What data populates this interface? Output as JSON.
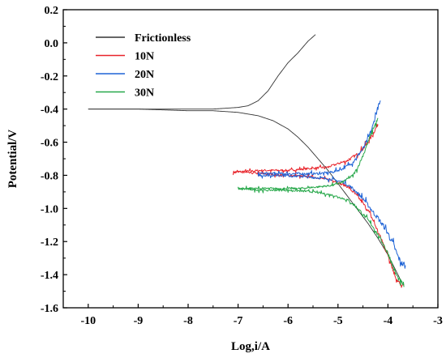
{
  "chart_data": {
    "type": "line",
    "xlabel": "Log,i/A",
    "ylabel": "Potential/V",
    "xlim": [
      -10.5,
      -3
    ],
    "ylim": [
      -1.6,
      0.2
    ],
    "xticks": [
      "-10",
      "-9",
      "-8",
      "-7",
      "-6",
      "-5",
      "-4",
      "-3"
    ],
    "xtick_values": [
      -10,
      -9,
      -8,
      -7,
      -6,
      -5,
      -4,
      -3
    ],
    "yticks": [
      "0.2",
      "0.0",
      "-0.2",
      "-0.4",
      "-0.6",
      "-0.8",
      "-1.0",
      "-1.2",
      "-1.4",
      "-1.6"
    ],
    "ytick_values": [
      0.2,
      0.0,
      -0.2,
      -0.4,
      -0.6,
      -0.8,
      -1.0,
      -1.2,
      -1.4,
      -1.6
    ],
    "grid": false,
    "legend_position": "top-left",
    "series": [
      {
        "name": "Frictionless",
        "color": "#333333",
        "noise": 0,
        "anodic": {
          "x": [
            -10.0,
            -9.0,
            -8.5,
            -8.0,
            -7.5,
            -7.0,
            -6.8,
            -6.6,
            -6.4,
            -6.2,
            -6.0,
            -5.8,
            -5.6,
            -5.45
          ],
          "y": [
            -0.4,
            -0.4,
            -0.4,
            -0.4,
            -0.4,
            -0.39,
            -0.38,
            -0.35,
            -0.29,
            -0.2,
            -0.12,
            -0.06,
            0.01,
            0.05
          ]
        },
        "cathodic": {
          "x": [
            -10.0,
            -9.0,
            -8.0,
            -7.5,
            -7.0,
            -6.6,
            -6.3,
            -6.0,
            -5.8,
            -5.6,
            -5.4,
            -5.2,
            -5.0,
            -4.8,
            -4.6,
            -4.4,
            -4.2,
            -4.0,
            -3.9,
            -3.8,
            -3.7
          ],
          "y": [
            -0.4,
            -0.4,
            -0.41,
            -0.41,
            -0.42,
            -0.44,
            -0.47,
            -0.52,
            -0.57,
            -0.63,
            -0.7,
            -0.77,
            -0.85,
            -0.93,
            -1.01,
            -1.09,
            -1.18,
            -1.28,
            -1.34,
            -1.4,
            -1.46
          ]
        }
      },
      {
        "name": "10N",
        "color": "#e8242b",
        "noise": 0.012,
        "anodic": {
          "x": [
            -7.1,
            -6.5,
            -6.0,
            -5.6,
            -5.2,
            -5.0,
            -4.8,
            -4.6,
            -4.5,
            -4.4,
            -4.3,
            -4.25,
            -4.2
          ],
          "y": [
            -0.78,
            -0.77,
            -0.77,
            -0.76,
            -0.75,
            -0.73,
            -0.71,
            -0.67,
            -0.64,
            -0.6,
            -0.55,
            -0.52,
            -0.49
          ]
        },
        "cathodic": {
          "x": [
            -7.1,
            -6.5,
            -6.0,
            -5.5,
            -5.1,
            -4.8,
            -4.6,
            -4.4,
            -4.3,
            -4.2,
            -4.1,
            -4.0,
            -3.95,
            -3.9,
            -3.85,
            -3.8,
            -3.75,
            -3.72,
            -3.68
          ],
          "y": [
            -0.78,
            -0.79,
            -0.8,
            -0.81,
            -0.83,
            -0.87,
            -0.93,
            -1.01,
            -1.07,
            -1.14,
            -1.21,
            -1.28,
            -1.32,
            -1.37,
            -1.41,
            -1.44,
            -1.46,
            -1.47,
            -1.47
          ]
        }
      },
      {
        "name": "20N",
        "color": "#1e63d6",
        "noise": 0.014,
        "anodic": {
          "x": [
            -6.6,
            -6.2,
            -5.8,
            -5.4,
            -5.1,
            -4.9,
            -4.7,
            -4.6,
            -4.5,
            -4.4,
            -4.3,
            -4.25,
            -4.2,
            -4.15
          ],
          "y": [
            -0.79,
            -0.79,
            -0.79,
            -0.79,
            -0.78,
            -0.76,
            -0.72,
            -0.68,
            -0.64,
            -0.58,
            -0.5,
            -0.44,
            -0.39,
            -0.36
          ]
        },
        "cathodic": {
          "x": [
            -6.6,
            -6.1,
            -5.6,
            -5.2,
            -4.9,
            -4.7,
            -4.5,
            -4.3,
            -4.2,
            -4.1,
            -4.0,
            -3.9,
            -3.85,
            -3.8,
            -3.75,
            -3.7,
            -3.65
          ],
          "y": [
            -0.8,
            -0.8,
            -0.81,
            -0.82,
            -0.84,
            -0.88,
            -0.94,
            -1.02,
            -1.06,
            -1.1,
            -1.15,
            -1.21,
            -1.25,
            -1.29,
            -1.32,
            -1.34,
            -1.35
          ]
        }
      },
      {
        "name": "30N",
        "color": "#27a84a",
        "noise": 0.011,
        "anodic": {
          "x": [
            -7.0,
            -6.6,
            -6.2,
            -5.8,
            -5.4,
            -5.1,
            -4.9,
            -4.7,
            -4.6,
            -4.5,
            -4.4,
            -4.3,
            -4.25,
            -4.2
          ],
          "y": [
            -0.88,
            -0.88,
            -0.88,
            -0.88,
            -0.87,
            -0.86,
            -0.84,
            -0.8,
            -0.75,
            -0.68,
            -0.6,
            -0.52,
            -0.49,
            -0.46
          ]
        },
        "cathodic": {
          "x": [
            -7.0,
            -6.5,
            -6.0,
            -5.5,
            -5.1,
            -4.8,
            -4.6,
            -4.4,
            -4.3,
            -4.2,
            -4.1,
            -4.0,
            -3.95,
            -3.9,
            -3.85,
            -3.8,
            -3.75,
            -3.72,
            -3.68
          ],
          "y": [
            -0.88,
            -0.89,
            -0.89,
            -0.9,
            -0.92,
            -0.95,
            -1.0,
            -1.07,
            -1.11,
            -1.16,
            -1.21,
            -1.27,
            -1.31,
            -1.35,
            -1.39,
            -1.42,
            -1.44,
            -1.45,
            -1.46
          ]
        }
      }
    ]
  }
}
